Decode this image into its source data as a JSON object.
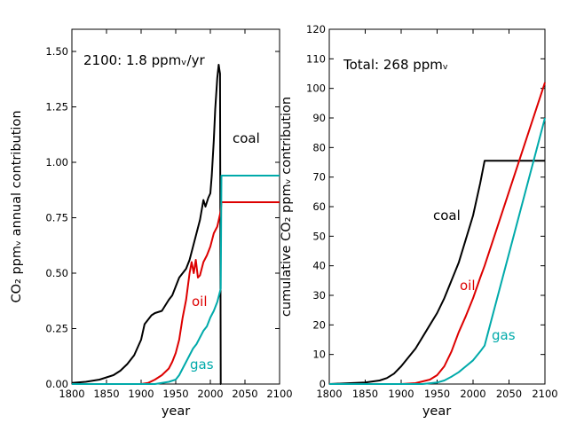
{
  "chart_data": [
    {
      "type": "line",
      "xlabel": "year",
      "ylabel": "CO₂ ppmᵥ annual contribution",
      "xlim": [
        1800,
        2100
      ],
      "ylim": [
        0,
        1.6
      ],
      "x_ticks": [
        "1800",
        "1850",
        "1900",
        "1950",
        "2000",
        "2050",
        "2100"
      ],
      "y_ticks": [
        "0.00",
        "0.25",
        "0.50",
        "0.75",
        "1.00",
        "1.25",
        "1.50"
      ],
      "grid": false,
      "annotation": "2100: 1.8 ppmᵥ/yr",
      "series": [
        {
          "label": "coal",
          "color": "#000000",
          "points": [
            [
              1800,
              0.005
            ],
            [
              1820,
              0.01
            ],
            [
              1840,
              0.02
            ],
            [
              1860,
              0.04
            ],
            [
              1870,
              0.06
            ],
            [
              1880,
              0.09
            ],
            [
              1890,
              0.13
            ],
            [
              1900,
              0.2
            ],
            [
              1905,
              0.27
            ],
            [
              1910,
              0.29
            ],
            [
              1915,
              0.31
            ],
            [
              1920,
              0.32
            ],
            [
              1930,
              0.33
            ],
            [
              1940,
              0.38
            ],
            [
              1945,
              0.4
            ],
            [
              1950,
              0.44
            ],
            [
              1955,
              0.48
            ],
            [
              1960,
              0.5
            ],
            [
              1965,
              0.52
            ],
            [
              1970,
              0.56
            ],
            [
              1975,
              0.62
            ],
            [
              1980,
              0.68
            ],
            [
              1985,
              0.74
            ],
            [
              1990,
              0.83
            ],
            [
              1993,
              0.8
            ],
            [
              1997,
              0.84
            ],
            [
              2000,
              0.86
            ],
            [
              2002,
              0.94
            ],
            [
              2005,
              1.1
            ],
            [
              2007,
              1.24
            ],
            [
              2010,
              1.38
            ],
            [
              2012,
              1.44
            ],
            [
              2013,
              1.42
            ],
            [
              2014,
              1.4
            ],
            [
              2015,
              0.0
            ],
            [
              2015.5,
              0.0
            ]
          ]
        },
        {
          "label": "oil",
          "color": "#dd0000",
          "points": [
            [
              1800,
              0
            ],
            [
              1900,
              0
            ],
            [
              1910,
              0.005
            ],
            [
              1920,
              0.02
            ],
            [
              1930,
              0.04
            ],
            [
              1940,
              0.07
            ],
            [
              1945,
              0.1
            ],
            [
              1950,
              0.14
            ],
            [
              1955,
              0.2
            ],
            [
              1960,
              0.3
            ],
            [
              1965,
              0.38
            ],
            [
              1970,
              0.5
            ],
            [
              1973,
              0.55
            ],
            [
              1976,
              0.5
            ],
            [
              1979,
              0.56
            ],
            [
              1982,
              0.48
            ],
            [
              1985,
              0.49
            ],
            [
              1990,
              0.55
            ],
            [
              1995,
              0.58
            ],
            [
              2000,
              0.62
            ],
            [
              2005,
              0.68
            ],
            [
              2010,
              0.71
            ],
            [
              2015,
              0.78
            ],
            [
              2016,
              0.82
            ],
            [
              2100,
              0.82
            ]
          ]
        },
        {
          "label": "gas",
          "color": "#00aaaa",
          "points": [
            [
              1800,
              0
            ],
            [
              1920,
              0
            ],
            [
              1930,
              0.005
            ],
            [
              1940,
              0.01
            ],
            [
              1950,
              0.02
            ],
            [
              1955,
              0.04
            ],
            [
              1960,
              0.07
            ],
            [
              1965,
              0.1
            ],
            [
              1970,
              0.13
            ],
            [
              1975,
              0.16
            ],
            [
              1980,
              0.18
            ],
            [
              1985,
              0.21
            ],
            [
              1990,
              0.24
            ],
            [
              1995,
              0.26
            ],
            [
              2000,
              0.3
            ],
            [
              2005,
              0.33
            ],
            [
              2010,
              0.37
            ],
            [
              2015,
              0.43
            ],
            [
              2016,
              0.94
            ],
            [
              2100,
              0.94
            ]
          ]
        }
      ]
    },
    {
      "type": "line",
      "xlabel": "year",
      "ylabel": "cumulative CO₂ ppmᵥ contribution",
      "xlim": [
        1800,
        2100
      ],
      "ylim": [
        0,
        120
      ],
      "x_ticks": [
        "1800",
        "1850",
        "1900",
        "1950",
        "2000",
        "2050",
        "2100"
      ],
      "y_ticks": [
        "0",
        "10",
        "20",
        "30",
        "40",
        "50",
        "60",
        "70",
        "80",
        "90",
        "100",
        "110",
        "120"
      ],
      "grid": false,
      "annotation": "Total: 268 ppmᵥ",
      "series": [
        {
          "label": "coal",
          "color": "#000000",
          "points": [
            [
              1800,
              0
            ],
            [
              1850,
              0.5
            ],
            [
              1870,
              1.2
            ],
            [
              1880,
              2
            ],
            [
              1890,
              3.5
            ],
            [
              1900,
              6
            ],
            [
              1910,
              9
            ],
            [
              1920,
              12
            ],
            [
              1930,
              16
            ],
            [
              1940,
              20
            ],
            [
              1950,
              24
            ],
            [
              1960,
              29
            ],
            [
              1970,
              35
            ],
            [
              1980,
              41
            ],
            [
              1990,
              49
            ],
            [
              2000,
              57
            ],
            [
              2010,
              68
            ],
            [
              2016,
              75.5
            ],
            [
              2100,
              75.5
            ]
          ]
        },
        {
          "label": "oil",
          "color": "#dd0000",
          "points": [
            [
              1800,
              0
            ],
            [
              1900,
              0
            ],
            [
              1920,
              0.3
            ],
            [
              1940,
              1.5
            ],
            [
              1950,
              3
            ],
            [
              1960,
              6
            ],
            [
              1970,
              11
            ],
            [
              1980,
              17.5
            ],
            [
              1990,
              23
            ],
            [
              2000,
              29
            ],
            [
              2010,
              36
            ],
            [
              2016,
              40
            ],
            [
              2100,
              102
            ]
          ]
        },
        {
          "label": "gas",
          "color": "#00aaaa",
          "points": [
            [
              1800,
              0
            ],
            [
              1930,
              0
            ],
            [
              1950,
              0.5
            ],
            [
              1960,
              1.2
            ],
            [
              1970,
              2.5
            ],
            [
              1980,
              4
            ],
            [
              1990,
              6
            ],
            [
              2000,
              8
            ],
            [
              2010,
              11
            ],
            [
              2016,
              13
            ],
            [
              2100,
              90
            ]
          ]
        }
      ]
    }
  ]
}
